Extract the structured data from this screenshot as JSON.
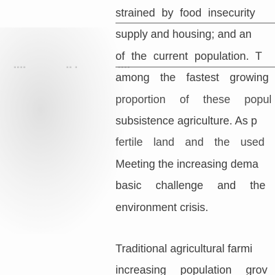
{
  "document": {
    "lines": [
      "strained by food insecurity",
      "supply and housing; and an",
      "of the current population. T",
      "among the fastest growing",
      "proportion of these popul",
      "subsistence agriculture. As p",
      "fertile land and the used",
      "Meeting the increasing dema",
      "basic challenge and the",
      "environment crisis.",
      "Traditional agricultural farmi",
      "increasing population grov"
    ]
  }
}
